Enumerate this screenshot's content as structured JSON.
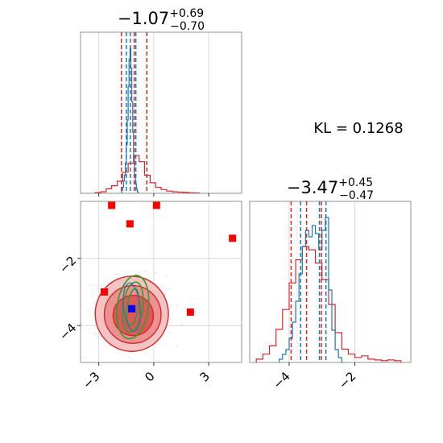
{
  "chart_data": {
    "type": "corner",
    "kl_label": "KL = 0.1268",
    "colors": {
      "red": "#d62728",
      "blue": "#1f77b4",
      "green": "#2ca02c",
      "marker_red": "#ff0000",
      "marker_blue": "#0000ff"
    },
    "param1": {
      "title": {
        "median": "−1.07",
        "plus": "+0.69",
        "minus": "−0.70"
      },
      "xlim": [
        -4.0,
        4.8
      ],
      "ticks": [
        -3,
        0,
        3
      ],
      "tick_labels": [
        "−3",
        "0",
        "3"
      ],
      "red_quantiles": [
        -1.77,
        -1.07,
        -0.38
      ],
      "blue_quantiles": [
        -1.5,
        -1.28,
        -0.98
      ],
      "blue_hist": {
        "bins": [
          -1.75,
          -1.7,
          -1.65,
          -1.6,
          -1.55,
          -1.5,
          -1.45,
          -1.4,
          -1.35,
          -1.3,
          -1.25,
          -1.2,
          -1.15,
          -1.1,
          -1.05,
          -1.0,
          -0.95,
          -0.9
        ],
        "counts": [
          0.02,
          0.04,
          0.08,
          0.12,
          0.2,
          0.32,
          0.48,
          0.7,
          0.88,
          0.95,
          0.82,
          0.6,
          0.4,
          0.24,
          0.12,
          0.06,
          0.03,
          0.01
        ]
      },
      "red_hist": {
        "bins": [
          -3.2,
          -2.9,
          -2.6,
          -2.3,
          -2.0,
          -1.7,
          -1.4,
          -1.1,
          -0.8,
          -0.5,
          -0.2,
          0.1,
          0.4,
          0.7,
          1.0,
          1.3,
          1.6,
          1.9,
          2.2
        ],
        "counts": [
          0.005,
          0.01,
          0.03,
          0.05,
          0.08,
          0.14,
          0.2,
          0.25,
          0.21,
          0.12,
          0.07,
          0.04,
          0.025,
          0.015,
          0.01,
          0.008,
          0.006,
          0.004,
          0.002
        ]
      }
    },
    "param2": {
      "title": {
        "median": "−3.47",
        "plus": "+0.45",
        "minus": "−0.47"
      },
      "xlim": [
        -5.2,
        -0.3
      ],
      "ylim": [
        -5.1,
        -0.3
      ],
      "ticks": [
        -4,
        -2
      ],
      "tick_labels": [
        "−4",
        "−2"
      ],
      "red_quantiles": [
        -3.94,
        -3.47,
        -3.02
      ],
      "blue_quantiles": [
        -3.65,
        -3.08,
        -2.88
      ],
      "blue_hist": {
        "bins": [
          -4.3,
          -4.2,
          -4.1,
          -4.0,
          -3.9,
          -3.8,
          -3.7,
          -3.6,
          -3.5,
          -3.4,
          -3.3,
          -3.2,
          -3.1,
          -3.0,
          -2.9,
          -2.8,
          -2.7,
          -2.6,
          -2.5
        ],
        "counts": [
          0.02,
          0.05,
          0.08,
          0.15,
          0.25,
          0.38,
          0.55,
          0.72,
          0.82,
          0.78,
          0.85,
          0.8,
          0.7,
          0.82,
          0.9,
          0.45,
          0.2,
          0.08,
          0.03
        ]
      },
      "red_hist": {
        "bins": [
          -5.0,
          -4.8,
          -4.6,
          -4.4,
          -4.2,
          -4.0,
          -3.8,
          -3.6,
          -3.4,
          -3.2,
          -3.0,
          -2.8,
          -2.6,
          -2.4,
          -2.2,
          -2.0,
          -1.8,
          -1.6,
          -1.4,
          -1.2,
          -1.0,
          -0.8
        ],
        "counts": [
          0.02,
          0.05,
          0.1,
          0.2,
          0.32,
          0.48,
          0.62,
          0.7,
          0.68,
          0.6,
          0.5,
          0.35,
          0.18,
          0.08,
          0.05,
          0.03,
          0.04,
          0.02,
          0.015,
          0.01,
          0.015,
          0.01
        ]
      }
    },
    "joint": {
      "red_contours": [
        {
          "center": [
            -1.2,
            -3.65
          ],
          "rx": 2.0,
          "ry": 1.12,
          "opacity": 1.0
        },
        {
          "center": [
            -1.15,
            -3.67
          ],
          "rx": 1.55,
          "ry": 0.86,
          "opacity": 0.8
        },
        {
          "center": [
            -1.12,
            -3.7
          ],
          "rx": 1.1,
          "ry": 0.6,
          "opacity": 0.8
        }
      ],
      "green_contours": [
        {
          "center": [
            -1.15,
            -3.45
          ],
          "rx": 0.85,
          "ry": 0.95
        },
        {
          "center": [
            -1.15,
            -3.45
          ],
          "rx": 0.55,
          "ry": 0.75
        },
        {
          "center": [
            -1.15,
            -3.45
          ],
          "rx": 0.3,
          "ry": 0.55
        }
      ],
      "blue_contours": [
        {
          "center": [
            -1.2,
            -3.45
          ],
          "rx": 0.45,
          "ry": 0.72
        }
      ],
      "red_markers": [
        {
          "x": -2.3,
          "y": -0.42
        },
        {
          "x": 0.15,
          "y": -0.42
        },
        {
          "x": -1.3,
          "y": -0.97
        },
        {
          "x": 4.3,
          "y": -1.4
        },
        {
          "x": -2.7,
          "y": -3.0
        },
        {
          "x": 2.0,
          "y": -3.6
        }
      ],
      "blue_marker": {
        "x": -1.2,
        "y": -3.5
      }
    }
  }
}
